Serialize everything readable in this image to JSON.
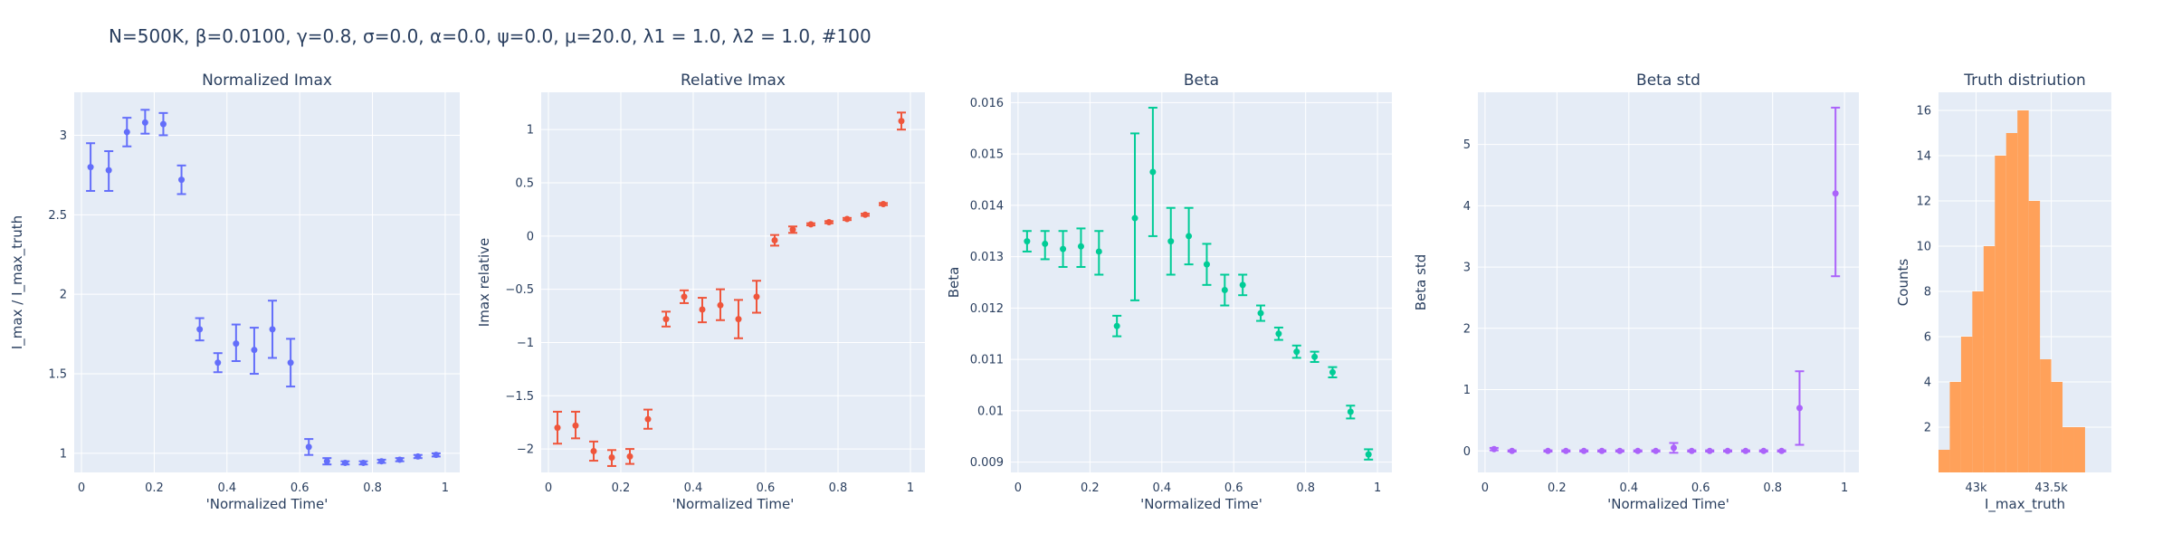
{
  "suptitle": "N=500K, β=0.0100, γ=0.8, σ=0.0,  α=0.0, ψ=0.0, μ=20.0, λ1 = 1.0, λ2 = 1.0, #100",
  "colors": {
    "plot_bg": "#e5ecf6",
    "grid": "#ffffff",
    "text": "#2a3f5f",
    "series1": "#636efa",
    "series2": "#ef553b",
    "series3": "#00cc96",
    "series4": "#ab63fa",
    "series5": "#ffa15a"
  },
  "chart_data": [
    {
      "type": "scatter",
      "title": "Normalized Imax",
      "xlabel": "'Normalized Time'",
      "ylabel": "I_max / I_max_truth",
      "xlim": [
        -0.02,
        1.04
      ],
      "ylim": [
        0.88,
        3.27
      ],
      "xticks": [
        0,
        0.2,
        0.4,
        0.6,
        0.8,
        1
      ],
      "xtick_labels": [
        "0",
        "0.2",
        "0.4",
        "0.6",
        "0.8",
        "1"
      ],
      "yticks": [
        1,
        1.5,
        2,
        2.5,
        3
      ],
      "ytick_labels": [
        "1",
        "1.5",
        "2",
        "2.5",
        "3"
      ],
      "color": "#636efa",
      "points": [
        {
          "x": 0.025,
          "y": 2.8,
          "lo": 2.65,
          "hi": 2.95
        },
        {
          "x": 0.075,
          "y": 2.78,
          "lo": 2.65,
          "hi": 2.9
        },
        {
          "x": 0.125,
          "y": 3.02,
          "lo": 2.93,
          "hi": 3.11
        },
        {
          "x": 0.175,
          "y": 3.08,
          "lo": 3.01,
          "hi": 3.16
        },
        {
          "x": 0.225,
          "y": 3.07,
          "lo": 3.0,
          "hi": 3.14
        },
        {
          "x": 0.275,
          "y": 2.72,
          "lo": 2.63,
          "hi": 2.81
        },
        {
          "x": 0.325,
          "y": 1.78,
          "lo": 1.71,
          "hi": 1.85
        },
        {
          "x": 0.375,
          "y": 1.57,
          "lo": 1.51,
          "hi": 1.63
        },
        {
          "x": 0.425,
          "y": 1.69,
          "lo": 1.58,
          "hi": 1.81
        },
        {
          "x": 0.475,
          "y": 1.65,
          "lo": 1.5,
          "hi": 1.79
        },
        {
          "x": 0.525,
          "y": 1.78,
          "lo": 1.6,
          "hi": 1.96
        },
        {
          "x": 0.575,
          "y": 1.57,
          "lo": 1.42,
          "hi": 1.72
        },
        {
          "x": 0.625,
          "y": 1.04,
          "lo": 0.99,
          "hi": 1.09
        },
        {
          "x": 0.675,
          "y": 0.95,
          "lo": 0.93,
          "hi": 0.97
        },
        {
          "x": 0.725,
          "y": 0.94,
          "lo": 0.93,
          "hi": 0.95
        },
        {
          "x": 0.775,
          "y": 0.94,
          "lo": 0.93,
          "hi": 0.95
        },
        {
          "x": 0.825,
          "y": 0.95,
          "lo": 0.94,
          "hi": 0.96
        },
        {
          "x": 0.875,
          "y": 0.96,
          "lo": 0.95,
          "hi": 0.97
        },
        {
          "x": 0.925,
          "y": 0.98,
          "lo": 0.97,
          "hi": 0.99
        },
        {
          "x": 0.975,
          "y": 0.99,
          "lo": 0.98,
          "hi": 1.0
        }
      ]
    },
    {
      "type": "scatter",
      "title": "Relative Imax",
      "xlabel": "'Normalized Time'",
      "ylabel": "Imax relative",
      "xlim": [
        -0.02,
        1.04
      ],
      "ylim": [
        -2.22,
        1.35
      ],
      "xticks": [
        0,
        0.2,
        0.4,
        0.6,
        0.8,
        1
      ],
      "xtick_labels": [
        "0",
        "0.2",
        "0.4",
        "0.6",
        "0.8",
        "1"
      ],
      "yticks": [
        -2,
        -1.5,
        -1,
        -0.5,
        0,
        0.5,
        1
      ],
      "ytick_labels": [
        "−2",
        "−1.5",
        "−1",
        "−0.5",
        "0",
        "0.5",
        "1"
      ],
      "color": "#ef553b",
      "points": [
        {
          "x": 0.025,
          "y": -1.8,
          "lo": -1.95,
          "hi": -1.65
        },
        {
          "x": 0.075,
          "y": -1.78,
          "lo": -1.9,
          "hi": -1.65
        },
        {
          "x": 0.125,
          "y": -2.02,
          "lo": -2.11,
          "hi": -1.93
        },
        {
          "x": 0.175,
          "y": -2.08,
          "lo": -2.16,
          "hi": -2.01
        },
        {
          "x": 0.225,
          "y": -2.07,
          "lo": -2.14,
          "hi": -2.0
        },
        {
          "x": 0.275,
          "y": -1.72,
          "lo": -1.81,
          "hi": -1.63
        },
        {
          "x": 0.325,
          "y": -0.78,
          "lo": -0.85,
          "hi": -0.71
        },
        {
          "x": 0.375,
          "y": -0.57,
          "lo": -0.63,
          "hi": -0.51
        },
        {
          "x": 0.425,
          "y": -0.69,
          "lo": -0.81,
          "hi": -0.58
        },
        {
          "x": 0.475,
          "y": -0.65,
          "lo": -0.79,
          "hi": -0.5
        },
        {
          "x": 0.525,
          "y": -0.78,
          "lo": -0.96,
          "hi": -0.6
        },
        {
          "x": 0.575,
          "y": -0.57,
          "lo": -0.72,
          "hi": -0.42
        },
        {
          "x": 0.625,
          "y": -0.04,
          "lo": -0.09,
          "hi": 0.01
        },
        {
          "x": 0.675,
          "y": 0.06,
          "lo": 0.03,
          "hi": 0.09
        },
        {
          "x": 0.725,
          "y": 0.11,
          "lo": 0.1,
          "hi": 0.12
        },
        {
          "x": 0.775,
          "y": 0.13,
          "lo": 0.12,
          "hi": 0.14
        },
        {
          "x": 0.825,
          "y": 0.16,
          "lo": 0.15,
          "hi": 0.17
        },
        {
          "x": 0.875,
          "y": 0.2,
          "lo": 0.19,
          "hi": 0.21
        },
        {
          "x": 0.925,
          "y": 0.3,
          "lo": 0.29,
          "hi": 0.31
        },
        {
          "x": 0.975,
          "y": 1.08,
          "lo": 1.0,
          "hi": 1.16
        }
      ]
    },
    {
      "type": "scatter",
      "title": "Beta",
      "xlabel": "'Normalized Time'",
      "ylabel": "Beta",
      "xlim": [
        -0.02,
        1.04
      ],
      "ylim": [
        0.0088,
        0.0162
      ],
      "xticks": [
        0,
        0.2,
        0.4,
        0.6,
        0.8,
        1
      ],
      "xtick_labels": [
        "0",
        "0.2",
        "0.4",
        "0.6",
        "0.8",
        "1"
      ],
      "yticks": [
        0.009,
        0.01,
        0.011,
        0.012,
        0.013,
        0.014,
        0.015,
        0.016
      ],
      "ytick_labels": [
        "0.009",
        "0.01",
        "0.011",
        "0.012",
        "0.013",
        "0.014",
        "0.015",
        "0.016"
      ],
      "color": "#00cc96",
      "points": [
        {
          "x": 0.025,
          "y": 0.0133,
          "lo": 0.0131,
          "hi": 0.0135
        },
        {
          "x": 0.075,
          "y": 0.01325,
          "lo": 0.01295,
          "hi": 0.0135
        },
        {
          "x": 0.125,
          "y": 0.01315,
          "lo": 0.0128,
          "hi": 0.0135
        },
        {
          "x": 0.175,
          "y": 0.0132,
          "lo": 0.0128,
          "hi": 0.01355
        },
        {
          "x": 0.225,
          "y": 0.0131,
          "lo": 0.01265,
          "hi": 0.0135
        },
        {
          "x": 0.275,
          "y": 0.01165,
          "lo": 0.01145,
          "hi": 0.01185
        },
        {
          "x": 0.325,
          "y": 0.01375,
          "lo": 0.01215,
          "hi": 0.0154
        },
        {
          "x": 0.375,
          "y": 0.01465,
          "lo": 0.0134,
          "hi": 0.0159
        },
        {
          "x": 0.425,
          "y": 0.0133,
          "lo": 0.01265,
          "hi": 0.01395
        },
        {
          "x": 0.475,
          "y": 0.0134,
          "lo": 0.01285,
          "hi": 0.01395
        },
        {
          "x": 0.525,
          "y": 0.01285,
          "lo": 0.01245,
          "hi": 0.01325
        },
        {
          "x": 0.575,
          "y": 0.01235,
          "lo": 0.01205,
          "hi": 0.01265
        },
        {
          "x": 0.625,
          "y": 0.01245,
          "lo": 0.01225,
          "hi": 0.01265
        },
        {
          "x": 0.675,
          "y": 0.0119,
          "lo": 0.01175,
          "hi": 0.01205
        },
        {
          "x": 0.725,
          "y": 0.0115,
          "lo": 0.01138,
          "hi": 0.01162
        },
        {
          "x": 0.775,
          "y": 0.01115,
          "lo": 0.01103,
          "hi": 0.01127
        },
        {
          "x": 0.825,
          "y": 0.01105,
          "lo": 0.01095,
          "hi": 0.01115
        },
        {
          "x": 0.875,
          "y": 0.01075,
          "lo": 0.01065,
          "hi": 0.01085
        },
        {
          "x": 0.925,
          "y": 0.00998,
          "lo": 0.00985,
          "hi": 0.0101
        },
        {
          "x": 0.975,
          "y": 0.00915,
          "lo": 0.00905,
          "hi": 0.00925
        }
      ]
    },
    {
      "type": "scatter",
      "title": "Beta std",
      "xlabel": "'Normalized Time'",
      "ylabel": "Beta std",
      "xlim": [
        -0.02,
        1.04
      ],
      "ylim": [
        -0.35,
        5.85
      ],
      "xticks": [
        0,
        0.2,
        0.4,
        0.6,
        0.8,
        1
      ],
      "xtick_labels": [
        "0",
        "0.2",
        "0.4",
        "0.6",
        "0.8",
        "1"
      ],
      "yticks": [
        0,
        1,
        2,
        3,
        4,
        5
      ],
      "ytick_labels": [
        "0",
        "1",
        "2",
        "3",
        "4",
        "5"
      ],
      "color": "#ab63fa",
      "points": [
        {
          "x": 0.025,
          "y": 0.03,
          "lo": 0.01,
          "hi": 0.05
        },
        {
          "x": 0.075,
          "y": 0.0,
          "lo": -0.01,
          "hi": 0.01
        },
        {
          "x": 0.175,
          "y": 0.0,
          "lo": -0.01,
          "hi": 0.01
        },
        {
          "x": 0.225,
          "y": 0.0,
          "lo": -0.01,
          "hi": 0.01
        },
        {
          "x": 0.275,
          "y": 0.0,
          "lo": -0.01,
          "hi": 0.01
        },
        {
          "x": 0.325,
          "y": 0.0,
          "lo": -0.01,
          "hi": 0.01
        },
        {
          "x": 0.375,
          "y": 0.0,
          "lo": -0.01,
          "hi": 0.01
        },
        {
          "x": 0.425,
          "y": 0.0,
          "lo": -0.01,
          "hi": 0.01
        },
        {
          "x": 0.475,
          "y": 0.0,
          "lo": -0.01,
          "hi": 0.01
        },
        {
          "x": 0.525,
          "y": 0.05,
          "lo": -0.03,
          "hi": 0.13
        },
        {
          "x": 0.575,
          "y": 0.0,
          "lo": -0.01,
          "hi": 0.01
        },
        {
          "x": 0.625,
          "y": 0.0,
          "lo": -0.01,
          "hi": 0.01
        },
        {
          "x": 0.675,
          "y": 0.0,
          "lo": -0.01,
          "hi": 0.01
        },
        {
          "x": 0.725,
          "y": 0.0,
          "lo": -0.01,
          "hi": 0.01
        },
        {
          "x": 0.775,
          "y": 0.0,
          "lo": -0.01,
          "hi": 0.01
        },
        {
          "x": 0.825,
          "y": 0.0,
          "lo": -0.01,
          "hi": 0.01
        },
        {
          "x": 0.875,
          "y": 0.7,
          "lo": 0.1,
          "hi": 1.3
        },
        {
          "x": 0.975,
          "y": 4.2,
          "lo": 2.85,
          "hi": 5.6
        }
      ]
    },
    {
      "type": "histogram",
      "title": "Truth distriution",
      "xlabel": "I_max_truth",
      "ylabel": "Counts",
      "xlim": [
        42750,
        43900
      ],
      "ylim": [
        0,
        16.8
      ],
      "xticks": [
        43000,
        43500
      ],
      "xtick_labels": [
        "43k",
        "43.5k"
      ],
      "yticks": [
        2,
        4,
        6,
        8,
        10,
        12,
        14,
        16
      ],
      "ytick_labels": [
        "2",
        "4",
        "6",
        "8",
        "10",
        "12",
        "14",
        "16"
      ],
      "color": "#ffa15a",
      "bin_edges": [
        42750,
        42825,
        42900,
        42975,
        43050,
        43125,
        43200,
        43275,
        43350,
        43425,
        43500,
        43575,
        43650,
        43725,
        43800,
        43900
      ],
      "counts": [
        1,
        4,
        6,
        8,
        10,
        14,
        15,
        16,
        12,
        5,
        4,
        2,
        2,
        0,
        0
      ]
    }
  ]
}
